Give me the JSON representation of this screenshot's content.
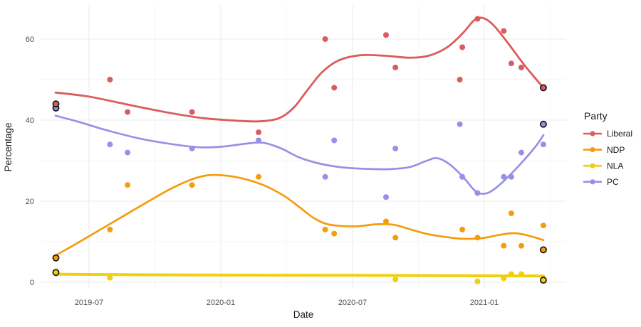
{
  "chart_data": {
    "type": "scatter",
    "smoother": "loess",
    "xlabel": "Date",
    "ylabel": "Percentage",
    "grid": true,
    "legend": {
      "title": "Party",
      "position": "right"
    },
    "y_axis": {
      "ticks": [
        0,
        20,
        40,
        60
      ],
      "minor": [
        10,
        30,
        50
      ],
      "range": [
        -2,
        68
      ]
    },
    "x_axis": {
      "ticks": [
        {
          "date": "2019-07-01",
          "label": "2019-07"
        },
        {
          "date": "2020-01-01",
          "label": "2020-01"
        },
        {
          "date": "2020-07-01",
          "label": "2020-07"
        },
        {
          "date": "2021-01-01",
          "label": "2021-01"
        }
      ],
      "minor": [
        "2019-10-01",
        "2020-04-01",
        "2020-10-01",
        "2021-04-01"
      ]
    },
    "series": [
      {
        "name": "NLA",
        "color": "#f2cf0e",
        "line_width": 4,
        "points": [
          {
            "date": "2019-05-16",
            "value": 2.4,
            "election": true
          },
          {
            "date": "2019-07-30",
            "value": 1.1
          },
          {
            "date": "2020-08-30",
            "value": 0.7
          },
          {
            "date": "2020-12-22",
            "value": 0.2
          },
          {
            "date": "2021-01-28",
            "value": 1
          },
          {
            "date": "2021-02-08",
            "value": 2
          },
          {
            "date": "2021-02-22",
            "value": 2
          },
          {
            "date": "2021-03-22",
            "value": 0.5,
            "election": true
          }
        ],
        "smooth": [
          [
            78,
            2.0
          ],
          [
            200,
            1.85
          ],
          [
            350,
            1.75
          ],
          [
            500,
            1.7
          ],
          [
            650,
            1.6
          ],
          [
            763,
            1.55
          ]
        ]
      },
      {
        "name": "NDP",
        "color": "#f59c0c",
        "line_width": 2.7,
        "points": [
          {
            "date": "2019-05-16",
            "value": 6,
            "election": true
          },
          {
            "date": "2019-07-30",
            "value": 13
          },
          {
            "date": "2019-08-24",
            "value": 24
          },
          {
            "date": "2019-11-22",
            "value": 24
          },
          {
            "date": "2020-02-23",
            "value": 26
          },
          {
            "date": "2020-05-24",
            "value": 13
          },
          {
            "date": "2020-06-06",
            "value": 12
          },
          {
            "date": "2020-08-17",
            "value": 15
          },
          {
            "date": "2020-08-30",
            "value": 11
          },
          {
            "date": "2020-12-01",
            "value": 13
          },
          {
            "date": "2020-12-22",
            "value": 11
          },
          {
            "date": "2021-01-28",
            "value": 9
          },
          {
            "date": "2021-02-08",
            "value": 17
          },
          {
            "date": "2021-02-22",
            "value": 9
          },
          {
            "date": "2021-03-22",
            "value": 14
          },
          {
            "date": "2021-03-22",
            "value": 8,
            "election": true
          }
        ],
        "smooth": [
          [
            78,
            6.6
          ],
          [
            108,
            9.6
          ],
          [
            140,
            12.9
          ],
          [
            172,
            16.2
          ],
          [
            205,
            19.6
          ],
          [
            238,
            22.9
          ],
          [
            268,
            25.3
          ],
          [
            292,
            26.4
          ],
          [
            318,
            26.3
          ],
          [
            345,
            25.4
          ],
          [
            372,
            23.8
          ],
          [
            398,
            21.4
          ],
          [
            420,
            18.6
          ],
          [
            440,
            15.9
          ],
          [
            458,
            14.4
          ],
          [
            478,
            13.9
          ],
          [
            502,
            13.8
          ],
          [
            528,
            14.3
          ],
          [
            552,
            14.2
          ],
          [
            575,
            13.1
          ],
          [
            600,
            11.9
          ],
          [
            628,
            11.1
          ],
          [
            652,
            10.7
          ],
          [
            678,
            10.9
          ],
          [
            702,
            11.7
          ],
          [
            722,
            12.1
          ],
          [
            742,
            11.5
          ],
          [
            763,
            10.4
          ]
        ]
      },
      {
        "name": "PC",
        "color": "#9691e6",
        "line_width": 2.7,
        "points": [
          {
            "date": "2019-05-16",
            "value": 43,
            "election": true
          },
          {
            "date": "2019-07-30",
            "value": 34
          },
          {
            "date": "2019-08-24",
            "value": 32
          },
          {
            "date": "2019-11-22",
            "value": 33
          },
          {
            "date": "2020-02-23",
            "value": 35
          },
          {
            "date": "2020-05-24",
            "value": 26
          },
          {
            "date": "2020-06-06",
            "value": 35
          },
          {
            "date": "2020-08-17",
            "value": 21
          },
          {
            "date": "2020-08-30",
            "value": 33
          },
          {
            "date": "2020-11-28",
            "value": 39
          },
          {
            "date": "2020-12-01",
            "value": 26
          },
          {
            "date": "2020-12-22",
            "value": 22
          },
          {
            "date": "2021-01-28",
            "value": 26
          },
          {
            "date": "2021-02-08",
            "value": 26
          },
          {
            "date": "2021-02-22",
            "value": 32
          },
          {
            "date": "2021-03-22",
            "value": 34
          },
          {
            "date": "2021-03-22",
            "value": 39,
            "election": true
          }
        ],
        "smooth": [
          [
            78,
            41.1
          ],
          [
            110,
            39.6
          ],
          [
            150,
            37.5
          ],
          [
            195,
            35.5
          ],
          [
            240,
            34.1
          ],
          [
            280,
            33.3
          ],
          [
            315,
            33.5
          ],
          [
            345,
            34.2
          ],
          [
            370,
            34.4
          ],
          [
            395,
            33.0
          ],
          [
            420,
            30.8
          ],
          [
            448,
            29.3
          ],
          [
            478,
            28.4
          ],
          [
            510,
            28.0
          ],
          [
            545,
            27.9
          ],
          [
            575,
            28.4
          ],
          [
            598,
            29.9
          ],
          [
            614,
            30.6
          ],
          [
            632,
            29.0
          ],
          [
            650,
            26.0
          ],
          [
            665,
            22.9
          ],
          [
            674,
            21.9
          ],
          [
            686,
            22.1
          ],
          [
            700,
            23.8
          ],
          [
            718,
            26.8
          ],
          [
            736,
            30.2
          ],
          [
            752,
            33.5
          ],
          [
            763,
            36.3
          ]
        ]
      },
      {
        "name": "Liberal",
        "color": "#db5c5c",
        "line_width": 2.8,
        "points": [
          {
            "date": "2019-05-16",
            "value": 44,
            "election": true
          },
          {
            "date": "2019-07-30",
            "value": 50
          },
          {
            "date": "2019-08-24",
            "value": 42
          },
          {
            "date": "2019-11-22",
            "value": 42
          },
          {
            "date": "2020-02-23",
            "value": 37
          },
          {
            "date": "2020-05-24",
            "value": 60
          },
          {
            "date": "2020-06-06",
            "value": 48
          },
          {
            "date": "2020-08-17",
            "value": 61
          },
          {
            "date": "2020-08-30",
            "value": 53
          },
          {
            "date": "2020-11-28",
            "value": 50
          },
          {
            "date": "2020-12-01",
            "value": 58
          },
          {
            "date": "2020-12-22",
            "value": 65
          },
          {
            "date": "2021-01-28",
            "value": 62
          },
          {
            "date": "2021-02-08",
            "value": 54
          },
          {
            "date": "2021-02-22",
            "value": 53
          },
          {
            "date": "2021-03-22",
            "value": 48,
            "election": true
          }
        ],
        "smooth": [
          [
            78,
            46.8
          ],
          [
            125,
            45.8
          ],
          [
            180,
            43.8
          ],
          [
            235,
            41.9
          ],
          [
            285,
            40.5
          ],
          [
            330,
            39.9
          ],
          [
            365,
            39.7
          ],
          [
            392,
            40.5
          ],
          [
            412,
            43.0
          ],
          [
            432,
            47.5
          ],
          [
            452,
            51.8
          ],
          [
            475,
            54.7
          ],
          [
            505,
            56.0
          ],
          [
            540,
            55.9
          ],
          [
            575,
            55.4
          ],
          [
            602,
            55.9
          ],
          [
            628,
            58.0
          ],
          [
            650,
            61.5
          ],
          [
            666,
            64.7
          ],
          [
            678,
            65.2
          ],
          [
            692,
            63.6
          ],
          [
            712,
            59.3
          ],
          [
            738,
            53.2
          ],
          [
            763,
            48.0
          ]
        ]
      }
    ],
    "legend_order": [
      "Liberal",
      "NDP",
      "NLA",
      "PC"
    ]
  }
}
